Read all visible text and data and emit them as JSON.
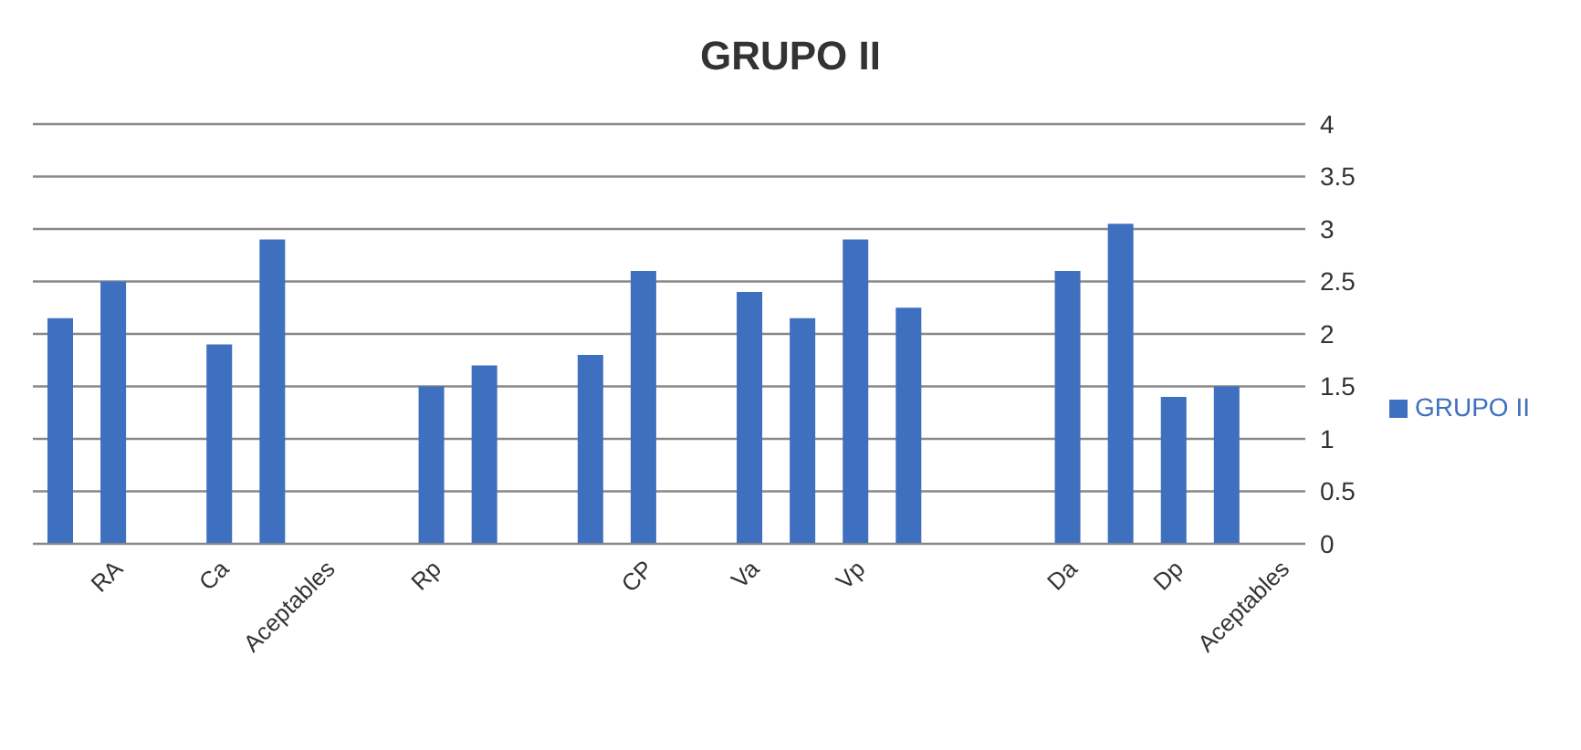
{
  "chart_data": {
    "type": "bar",
    "title": "GRUPO II",
    "categories": [
      null,
      "RA",
      null,
      "Ca",
      null,
      "Aceptables",
      null,
      "Rp",
      null,
      null,
      null,
      "CP",
      null,
      "Va",
      null,
      "Vp",
      null,
      null,
      null,
      "Da",
      null,
      "Dp",
      null,
      "Aceptables"
    ],
    "series": [
      {
        "name": "GRUPO II",
        "color": "#3f6fbf",
        "values": [
          2.15,
          2.5,
          null,
          1.9,
          2.9,
          null,
          null,
          1.5,
          1.7,
          null,
          1.8,
          2.6,
          null,
          2.4,
          2.15,
          2.9,
          2.25,
          null,
          null,
          2.6,
          3.05,
          1.4,
          1.5,
          null
        ]
      }
    ],
    "ylim": [
      0,
      4
    ],
    "yticks": [
      0,
      0.5,
      1,
      1.5,
      2,
      2.5,
      3,
      3.5,
      4
    ],
    "grid": "y",
    "legend": "right"
  }
}
